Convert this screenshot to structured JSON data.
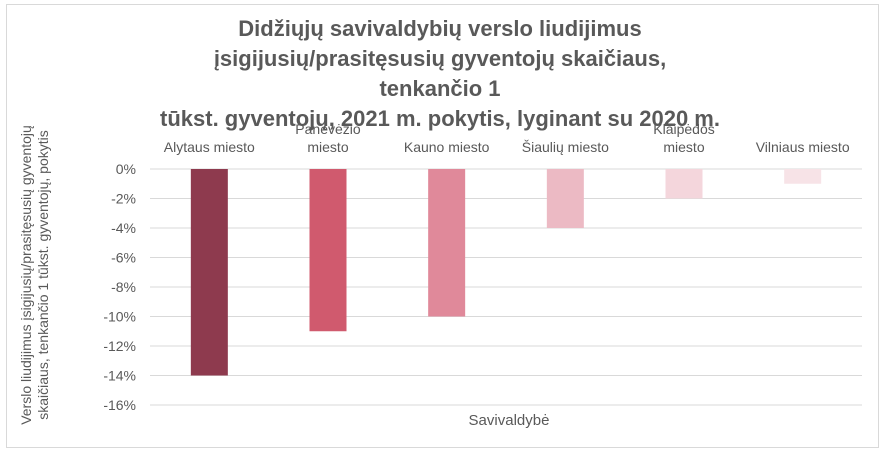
{
  "chart_data": {
    "type": "bar",
    "title_lines": [
      "Didžiųjų savivaldybių verslo liudijimus",
      "įsigijusių/prasitęsusių gyventojų skaičiaus, tenkančio 1",
      "tūkst. gyventojų, 2021 m. pokytis, lyginant su 2020 m."
    ],
    "xlabel": "Savivaldybė",
    "ylabel": "Verslo liudijimus įsigijusių/prasitęsusių gyventojų skaičiaus, tenkančio 1 tūkst. gyventojų, pokytis",
    "categories": [
      "Alytaus miesto",
      "Panevėžio miesto",
      "Kauno miesto",
      "Šiaulių miesto",
      "Klaipėdos miesto",
      "Vilniaus miesto"
    ],
    "category_label_lines": [
      [
        "Alytaus miesto"
      ],
      [
        "Panevėžio",
        "miesto"
      ],
      [
        "Kauno miesto"
      ],
      [
        "Šiaulių miesto"
      ],
      [
        "Klaipėdos",
        "miesto"
      ],
      [
        "Vilniaus miesto"
      ]
    ],
    "values": [
      -14,
      -11,
      -10,
      -4,
      -2,
      -1
    ],
    "bar_colors": [
      "#8e3a4e",
      "#d05a6e",
      "#e0899a",
      "#ecbac4",
      "#f4d6dc",
      "#f7e3e7"
    ],
    "ylim": [
      -16,
      0
    ],
    "yticks": [
      0,
      -2,
      -4,
      -6,
      -8,
      -10,
      -12,
      -14,
      -16
    ],
    "ytick_labels": [
      "0%",
      "-2%",
      "-4%",
      "-6%",
      "-8%",
      "-10%",
      "-12%",
      "-14%",
      "-16%"
    ],
    "grid": true
  }
}
